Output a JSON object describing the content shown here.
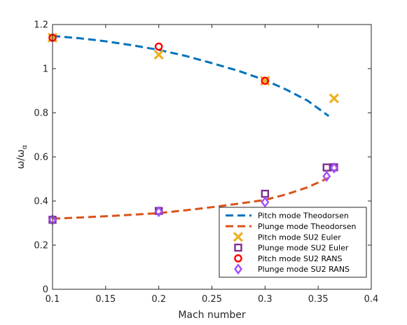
{
  "chart_data": {
    "type": "scatter",
    "xlabel": "Mach number",
    "ylabel_main": "ω/ω",
    "ylabel_sub": "α",
    "xlim": [
      0.1,
      0.4
    ],
    "ylim": [
      0,
      1.2
    ],
    "x_ticks": [
      0.1,
      0.15,
      0.2,
      0.25,
      0.3,
      0.35,
      0.4
    ],
    "x_tick_labels": [
      "0.1",
      "0.15",
      "0.2",
      "0.25",
      "0.3",
      "0.35",
      "0.4"
    ],
    "y_ticks": [
      0,
      0.2,
      0.4,
      0.6,
      0.8,
      1.0,
      1.2
    ],
    "y_tick_labels": [
      "0",
      "0.2",
      "0.4",
      "0.6",
      "0.8",
      "1",
      "1.2"
    ],
    "grid": false,
    "legend_position": "bottom-right",
    "series": [
      {
        "name": "Pitch mode Theodorsen",
        "style": "dashed-line",
        "color": "#0072BD",
        "x": [
          0.1,
          0.125,
          0.15,
          0.175,
          0.2,
          0.225,
          0.25,
          0.275,
          0.3,
          0.32,
          0.34,
          0.36
        ],
        "y": [
          1.148,
          1.138,
          1.124,
          1.106,
          1.085,
          1.058,
          1.025,
          0.99,
          0.948,
          0.905,
          0.855,
          0.785
        ]
      },
      {
        "name": "Plunge mode Theodorsen",
        "style": "dashed-line",
        "color": "#D95319",
        "x": [
          0.1,
          0.125,
          0.15,
          0.175,
          0.2,
          0.225,
          0.25,
          0.275,
          0.3,
          0.32,
          0.34,
          0.36
        ],
        "y": [
          0.32,
          0.325,
          0.331,
          0.338,
          0.345,
          0.358,
          0.372,
          0.388,
          0.405,
          0.43,
          0.462,
          0.505
        ]
      },
      {
        "name": "Pitch mode SU2 Euler",
        "style": "marker-x",
        "color": "#EDB120",
        "x": [
          0.1,
          0.2,
          0.3,
          0.365
        ],
        "y": [
          1.14,
          1.063,
          0.945,
          0.865
        ]
      },
      {
        "name": "Plunge mode SU2 Euler",
        "style": "marker-square",
        "color": "#7E2F8E",
        "x": [
          0.1,
          0.2,
          0.3,
          0.358,
          0.365
        ],
        "y": [
          0.315,
          0.355,
          0.433,
          0.552,
          0.553
        ]
      },
      {
        "name": "Pitch mode SU2 RANS",
        "style": "marker-circle",
        "color": "#FF0000",
        "x": [
          0.1,
          0.2,
          0.3
        ],
        "y": [
          1.14,
          1.1,
          0.945
        ]
      },
      {
        "name": "Plunge mode SU2 RANS",
        "style": "marker-diamond",
        "color": "#A24FFF",
        "x": [
          0.1,
          0.2,
          0.3,
          0.358,
          0.365
        ],
        "y": [
          0.315,
          0.352,
          0.395,
          0.512,
          0.55
        ]
      }
    ]
  }
}
